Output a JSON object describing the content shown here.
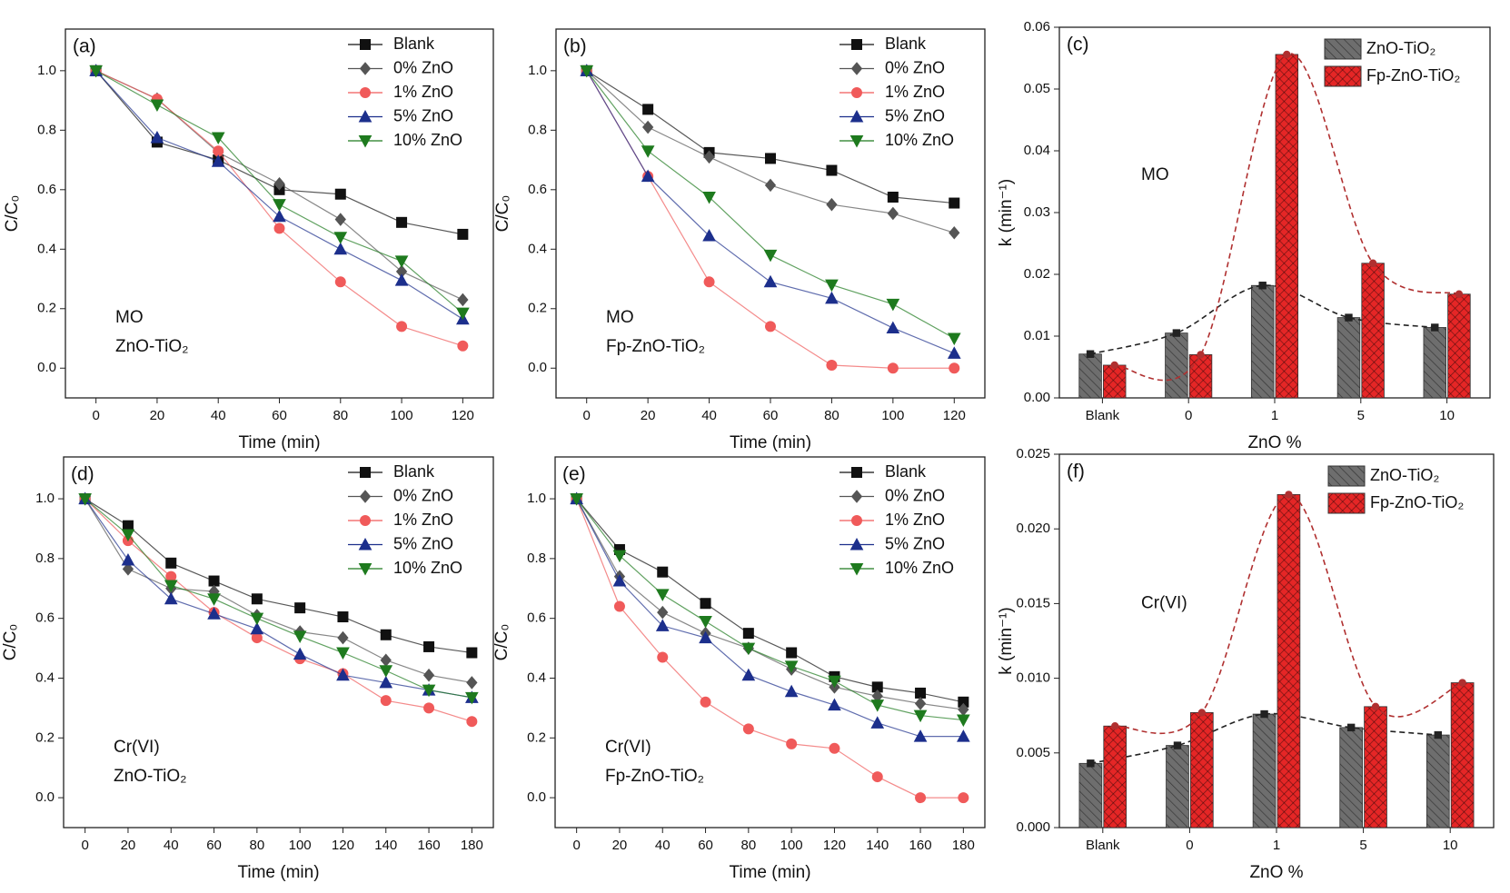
{
  "chart_data": [
    {
      "type": "line",
      "panel_label": "(a)",
      "annotations": [
        "MO",
        "ZnO-TiO₂"
      ],
      "x_label": "Time (min)",
      "y_label": "C/C₀",
      "x": [
        0,
        20,
        40,
        60,
        80,
        100,
        120
      ],
      "xlim": [
        -10,
        130
      ],
      "xticks": [
        0,
        20,
        40,
        60,
        80,
        100,
        120
      ],
      "ylim": [
        -0.1,
        1.14
      ],
      "yticks": [
        {
          "value": 0,
          "label": "0.0"
        },
        0.2,
        0.4,
        0.6,
        0.8,
        {
          "value": 1,
          "label": "1.0"
        }
      ],
      "legend": "upper right",
      "series": [
        {
          "name": "Blank",
          "color": "#111111",
          "marker": "square",
          "values": [
            1,
            0.76,
            0.7,
            0.6,
            0.585,
            0.49,
            0.45
          ]
        },
        {
          "name": "0% ZnO",
          "color": "#555555",
          "marker": "diamond",
          "values": [
            1,
            0.905,
            0.725,
            0.62,
            0.5,
            0.325,
            0.23
          ]
        },
        {
          "name": "1% ZnO",
          "color": "#f05a5a",
          "marker": "circle",
          "values": [
            1,
            0.905,
            0.73,
            0.47,
            0.29,
            0.14,
            0.075
          ]
        },
        {
          "name": "5% ZnO",
          "color": "#1c2f8c",
          "marker": "triangle",
          "values": [
            1,
            0.775,
            0.695,
            0.51,
            0.4,
            0.295,
            0.165
          ]
        },
        {
          "name": "10% ZnO",
          "color": "#1e7a1e",
          "marker": "triangle-down",
          "values": [
            1,
            0.885,
            0.775,
            0.55,
            0.44,
            0.36,
            0.185
          ]
        }
      ]
    },
    {
      "type": "line",
      "panel_label": "(b)",
      "annotations": [
        "MO",
        "Fp-ZnO-TiO₂"
      ],
      "x_label": "Time (min)",
      "y_label": "C/C₀",
      "x": [
        0,
        20,
        40,
        60,
        80,
        100,
        120
      ],
      "xlim": [
        -10,
        130
      ],
      "xticks": [
        0,
        20,
        40,
        60,
        80,
        100,
        120
      ],
      "ylim": [
        -0.1,
        1.14
      ],
      "yticks": [
        {
          "value": 0,
          "label": "0.0"
        },
        0.2,
        0.4,
        0.6,
        0.8,
        {
          "value": 1,
          "label": "1.0"
        }
      ],
      "legend": "upper right",
      "series": [
        {
          "name": "Blank",
          "color": "#111111",
          "marker": "square",
          "values": [
            1,
            0.87,
            0.725,
            0.705,
            0.665,
            0.575,
            0.555
          ]
        },
        {
          "name": "0% ZnO",
          "color": "#555555",
          "marker": "diamond",
          "values": [
            1,
            0.81,
            0.71,
            0.615,
            0.55,
            0.52,
            0.455
          ]
        },
        {
          "name": "1% ZnO",
          "color": "#f05a5a",
          "marker": "circle",
          "values": [
            1,
            0.645,
            0.29,
            0.14,
            0.01,
            0,
            0
          ]
        },
        {
          "name": "5% ZnO",
          "color": "#1c2f8c",
          "marker": "triangle",
          "values": [
            1,
            0.645,
            0.445,
            0.29,
            0.235,
            0.135,
            0.05
          ]
        },
        {
          "name": "10% ZnO",
          "color": "#1e7a1e",
          "marker": "triangle-down",
          "values": [
            1,
            0.73,
            0.575,
            0.38,
            0.28,
            0.215,
            0.1
          ]
        }
      ]
    },
    {
      "type": "bar",
      "panel_label": "(c)",
      "annotations": [
        "MO"
      ],
      "x_label": "ZnO %",
      "y_label": "k (min⁻¹)",
      "categories": [
        "Blank",
        "0",
        "1",
        "5",
        "10"
      ],
      "ylim": [
        0,
        0.06
      ],
      "yticks": [
        {
          "value": 0,
          "label": "0.00"
        },
        0.01,
        0.02,
        0.03,
        0.04,
        0.05,
        0.06
      ],
      "legend": "upper right",
      "trend_line": "dashed",
      "series": [
        {
          "name": "ZnO-TiO₂",
          "color": "#6e6e6e",
          "trend_color": "#222222",
          "values": [
            0.0071,
            0.0105,
            0.0182,
            0.013,
            0.0114
          ]
        },
        {
          "name": "Fp-ZnO-TiO₂",
          "color": "#e52626",
          "trend_color": "#b03030",
          "values": [
            0.0053,
            0.007,
            0.0556,
            0.0218,
            0.0168
          ]
        }
      ]
    },
    {
      "type": "line",
      "panel_label": "(d)",
      "annotations": [
        "Cr(VI)",
        "ZnO-TiO₂"
      ],
      "x_label": "Time (min)",
      "y_label": "C/C₀",
      "x": [
        0,
        20,
        40,
        60,
        80,
        100,
        120,
        140,
        160,
        180
      ],
      "xlim": [
        -10,
        190
      ],
      "xticks": [
        0,
        20,
        40,
        60,
        80,
        100,
        120,
        140,
        160,
        180
      ],
      "ylim": [
        -0.1,
        1.14
      ],
      "yticks": [
        {
          "value": 0,
          "label": "0.0"
        },
        0.2,
        0.4,
        0.6,
        0.8,
        {
          "value": 1,
          "label": "1.0"
        }
      ],
      "legend": "upper right",
      "series": [
        {
          "name": "Blank",
          "color": "#111111",
          "marker": "square",
          "values": [
            1,
            0.91,
            0.785,
            0.725,
            0.665,
            0.635,
            0.605,
            0.545,
            0.505,
            0.485
          ]
        },
        {
          "name": "0% ZnO",
          "color": "#555555",
          "marker": "diamond",
          "values": [
            1,
            0.765,
            0.7,
            0.69,
            0.61,
            0.555,
            0.535,
            0.46,
            0.41,
            0.385
          ]
        },
        {
          "name": "1% ZnO",
          "color": "#f05a5a",
          "marker": "circle",
          "values": [
            1,
            0.86,
            0.74,
            0.62,
            0.535,
            0.465,
            0.415,
            0.325,
            0.3,
            0.255
          ]
        },
        {
          "name": "5% ZnO",
          "color": "#1c2f8c",
          "marker": "triangle",
          "values": [
            1,
            0.795,
            0.665,
            0.615,
            0.565,
            0.48,
            0.41,
            0.385,
            0.36,
            0.335
          ]
        },
        {
          "name": "10% ZnO",
          "color": "#1e7a1e",
          "marker": "triangle-down",
          "values": [
            1,
            0.88,
            0.71,
            0.665,
            0.6,
            0.54,
            0.485,
            0.425,
            0.36,
            0.335
          ]
        }
      ]
    },
    {
      "type": "line",
      "panel_label": "(e)",
      "annotations": [
        "Cr(VI)",
        "Fp-ZnO-TiO₂"
      ],
      "x_label": "Time (min)",
      "y_label": "C/C₀",
      "x": [
        0,
        20,
        40,
        60,
        80,
        100,
        120,
        140,
        160,
        180
      ],
      "xlim": [
        -10,
        190
      ],
      "xticks": [
        0,
        20,
        40,
        60,
        80,
        100,
        120,
        140,
        160,
        180
      ],
      "ylim": [
        -0.1,
        1.14
      ],
      "yticks": [
        {
          "value": 0,
          "label": "0.0"
        },
        0.2,
        0.4,
        0.6,
        0.8,
        {
          "value": 1,
          "label": "1.0"
        }
      ],
      "legend": "upper right",
      "series": [
        {
          "name": "Blank",
          "color": "#111111",
          "marker": "square",
          "values": [
            1,
            0.83,
            0.755,
            0.65,
            0.55,
            0.485,
            0.405,
            0.37,
            0.35,
            0.32
          ]
        },
        {
          "name": "0% ZnO",
          "color": "#555555",
          "marker": "diamond",
          "values": [
            1,
            0.74,
            0.62,
            0.55,
            0.5,
            0.43,
            0.37,
            0.34,
            0.315,
            0.295
          ]
        },
        {
          "name": "1% ZnO",
          "color": "#f05a5a",
          "marker": "circle",
          "values": [
            1,
            0.64,
            0.47,
            0.32,
            0.23,
            0.18,
            0.165,
            0.07,
            0,
            0
          ]
        },
        {
          "name": "5% ZnO",
          "color": "#1c2f8c",
          "marker": "triangle",
          "values": [
            1,
            0.725,
            0.575,
            0.535,
            0.41,
            0.355,
            0.31,
            0.25,
            0.205,
            0.205
          ]
        },
        {
          "name": "10% ZnO",
          "color": "#1e7a1e",
          "marker": "triangle-down",
          "values": [
            1,
            0.81,
            0.68,
            0.59,
            0.5,
            0.44,
            0.39,
            0.31,
            0.275,
            0.26
          ]
        }
      ]
    },
    {
      "type": "bar",
      "panel_label": "(f)",
      "annotations": [
        "Cr(VI)"
      ],
      "x_label": "ZnO %",
      "y_label": "k (min⁻¹)",
      "categories": [
        "Blank",
        "0",
        "1",
        "5",
        "10"
      ],
      "ylim": [
        0,
        0.025
      ],
      "yticks": [
        {
          "value": 0,
          "label": "0.000"
        },
        0.005,
        {
          "value": 0.01,
          "label": "0.010"
        },
        0.015,
        {
          "value": 0.02,
          "label": "0.020"
        },
        0.025
      ],
      "legend": "upper right",
      "trend_line": "dashed",
      "series": [
        {
          "name": "ZnO-TiO₂",
          "color": "#6e6e6e",
          "trend_color": "#222222",
          "values": [
            0.0043,
            0.0055,
            0.0076,
            0.0067,
            0.0062
          ]
        },
        {
          "name": "Fp-ZnO-TiO₂",
          "color": "#e52626",
          "trend_color": "#b03030",
          "values": [
            0.0068,
            0.0077,
            0.0223,
            0.0081,
            0.0097
          ]
        }
      ]
    }
  ]
}
